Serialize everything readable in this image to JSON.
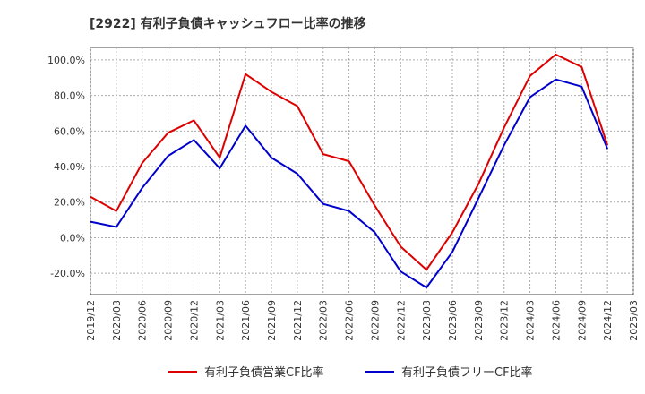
{
  "chart_data": {
    "type": "line",
    "title": "[2922]  有利子負債キャッシュフロー比率の推移",
    "xlabel": "",
    "ylabel": "",
    "ylim": [
      -32,
      107
    ],
    "grid": true,
    "legend_position": "bottom",
    "yticks": [
      {
        "value": 100,
        "label": "100.0%"
      },
      {
        "value": 80,
        "label": "80.0%"
      },
      {
        "value": 60,
        "label": "60.0%"
      },
      {
        "value": 40,
        "label": "40.0%"
      },
      {
        "value": 20,
        "label": "20.0%"
      },
      {
        "value": 0,
        "label": "0.0%"
      },
      {
        "value": -20,
        "label": "-20.0%"
      }
    ],
    "categories": [
      "2019/12",
      "2020/03",
      "2020/06",
      "2020/09",
      "2020/12",
      "2021/03",
      "2021/06",
      "2021/09",
      "2021/12",
      "2022/03",
      "2022/06",
      "2022/09",
      "2022/12",
      "2023/03",
      "2023/06",
      "2023/09",
      "2023/12",
      "2024/03",
      "2024/06",
      "2024/09",
      "2024/12",
      "2025/03"
    ],
    "series": [
      {
        "name": "有利子負債営業CF比率",
        "color": "#dd0000",
        "values": [
          23,
          15,
          42,
          59,
          66,
          45,
          92,
          82,
          74,
          47,
          43,
          18,
          -5,
          -18,
          3,
          30,
          62,
          91,
          103,
          96,
          52,
          null
        ]
      },
      {
        "name": "有利子負債フリーCF比率",
        "color": "#0000cc",
        "values": [
          9,
          6,
          28,
          46,
          55,
          39,
          63,
          45,
          36,
          19,
          15,
          3,
          -19,
          -28,
          -8,
          22,
          52,
          79,
          89,
          85,
          50,
          null
        ]
      }
    ]
  }
}
